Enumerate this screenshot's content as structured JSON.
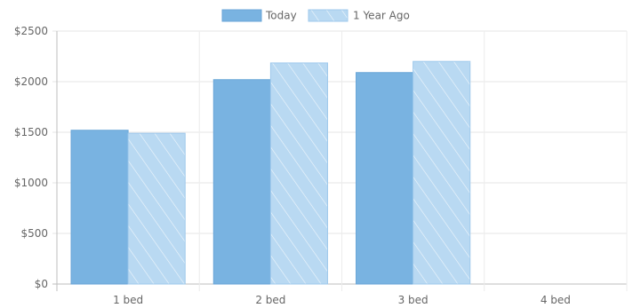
{
  "chart_data": {
    "type": "bar",
    "categories": [
      "1 bed",
      "2 bed",
      "3 bed",
      "4 bed"
    ],
    "series": [
      {
        "name": "Today",
        "values": [
          1520,
          2020,
          2090,
          null
        ],
        "color": "#79b3e1",
        "pattern": "solid"
      },
      {
        "name": "1 Year Ago",
        "values": [
          1490,
          2185,
          2200,
          null
        ],
        "color": "#b9d9f2",
        "pattern": "diagonal-hatch"
      }
    ],
    "y_ticks": [
      "$0",
      "$500",
      "$1000",
      "$1500",
      "$2000",
      "$2500"
    ],
    "ylim": [
      0,
      2500
    ],
    "grid": true,
    "legend_position": "top-center",
    "title": "",
    "xlabel": "",
    "ylabel": ""
  }
}
